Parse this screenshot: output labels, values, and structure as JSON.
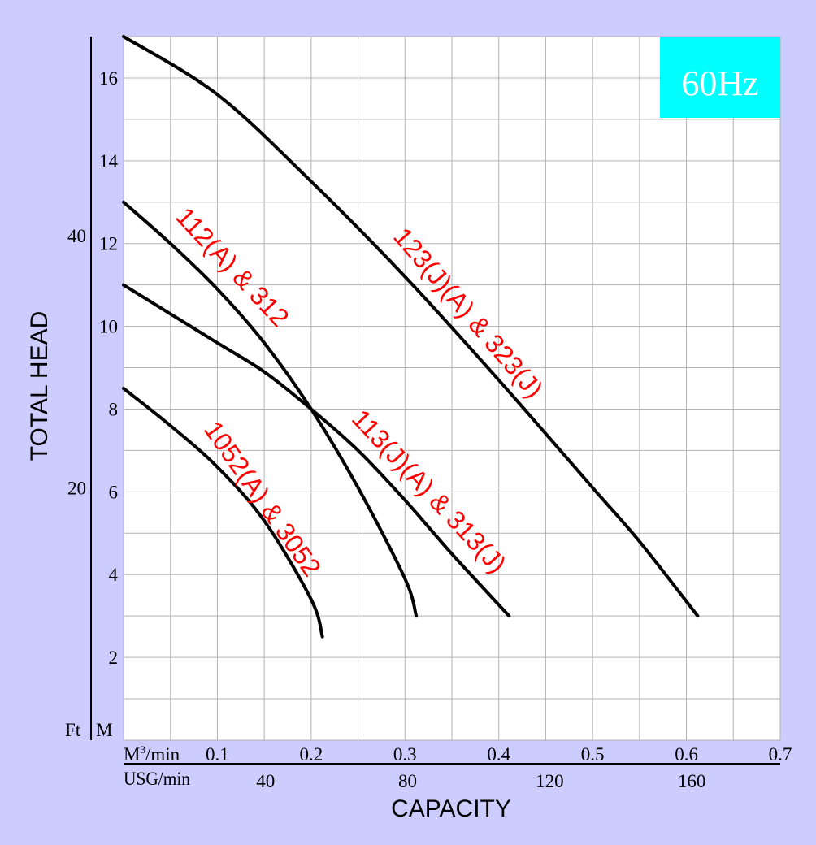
{
  "chart_data": {
    "type": "line",
    "title": "",
    "frequency_badge": "60Hz",
    "xlabel": "CAPACITY",
    "ylabel": "TOTAL HEAD",
    "x_units": {
      "primary": "M³/min",
      "primary_base": "M",
      "primary_sup": "3",
      "primary_rest": "/min",
      "secondary": "USG/min"
    },
    "y_units": {
      "primary": "M",
      "secondary": "Ft"
    },
    "xlim": [
      0,
      0.7
    ],
    "ylim": [
      0,
      17
    ],
    "x_ticks": [
      "0.1",
      "0.2",
      "0.3",
      "0.4",
      "0.5",
      "0.6",
      "0.7"
    ],
    "x_tick_values": [
      0.1,
      0.2,
      0.3,
      0.4,
      0.5,
      0.6,
      0.7
    ],
    "x_secondary_ticks": [
      "40",
      "80",
      "120",
      "160"
    ],
    "x_secondary_values": [
      40,
      80,
      120,
      160
    ],
    "y_ticks": [
      "2",
      "4",
      "6",
      "8",
      "10",
      "12",
      "14",
      "16"
    ],
    "y_tick_values": [
      2,
      4,
      6,
      8,
      10,
      12,
      14,
      16
    ],
    "y_secondary_ticks": [
      "20",
      "40"
    ],
    "y_secondary_values": [
      20,
      40
    ],
    "grid": true,
    "series": [
      {
        "name": "123(J)(A) & 323(J)",
        "x": [
          0,
          0.1,
          0.2,
          0.3,
          0.4,
          0.5,
          0.55,
          0.612
        ],
        "y": [
          17.0,
          15.6,
          13.5,
          11.2,
          8.7,
          6.1,
          4.8,
          3.0
        ]
      },
      {
        "name": "112(A) & 312",
        "x": [
          0,
          0.05,
          0.1,
          0.15,
          0.2,
          0.25,
          0.3,
          0.312
        ],
        "y": [
          13.0,
          12.0,
          10.9,
          9.6,
          8.0,
          6.1,
          3.9,
          3.0
        ]
      },
      {
        "name": "113(J)(A) & 313(J)",
        "x": [
          0,
          0.05,
          0.1,
          0.15,
          0.2,
          0.25,
          0.3,
          0.35,
          0.411
        ],
        "y": [
          11.0,
          10.3,
          9.6,
          8.9,
          8.0,
          7.0,
          5.8,
          4.5,
          3.0
        ]
      },
      {
        "name": "1052(A) & 3052",
        "x": [
          0,
          0.05,
          0.1,
          0.15,
          0.2,
          0.212
        ],
        "y": [
          8.5,
          7.6,
          6.6,
          5.3,
          3.4,
          2.5
        ]
      }
    ]
  }
}
